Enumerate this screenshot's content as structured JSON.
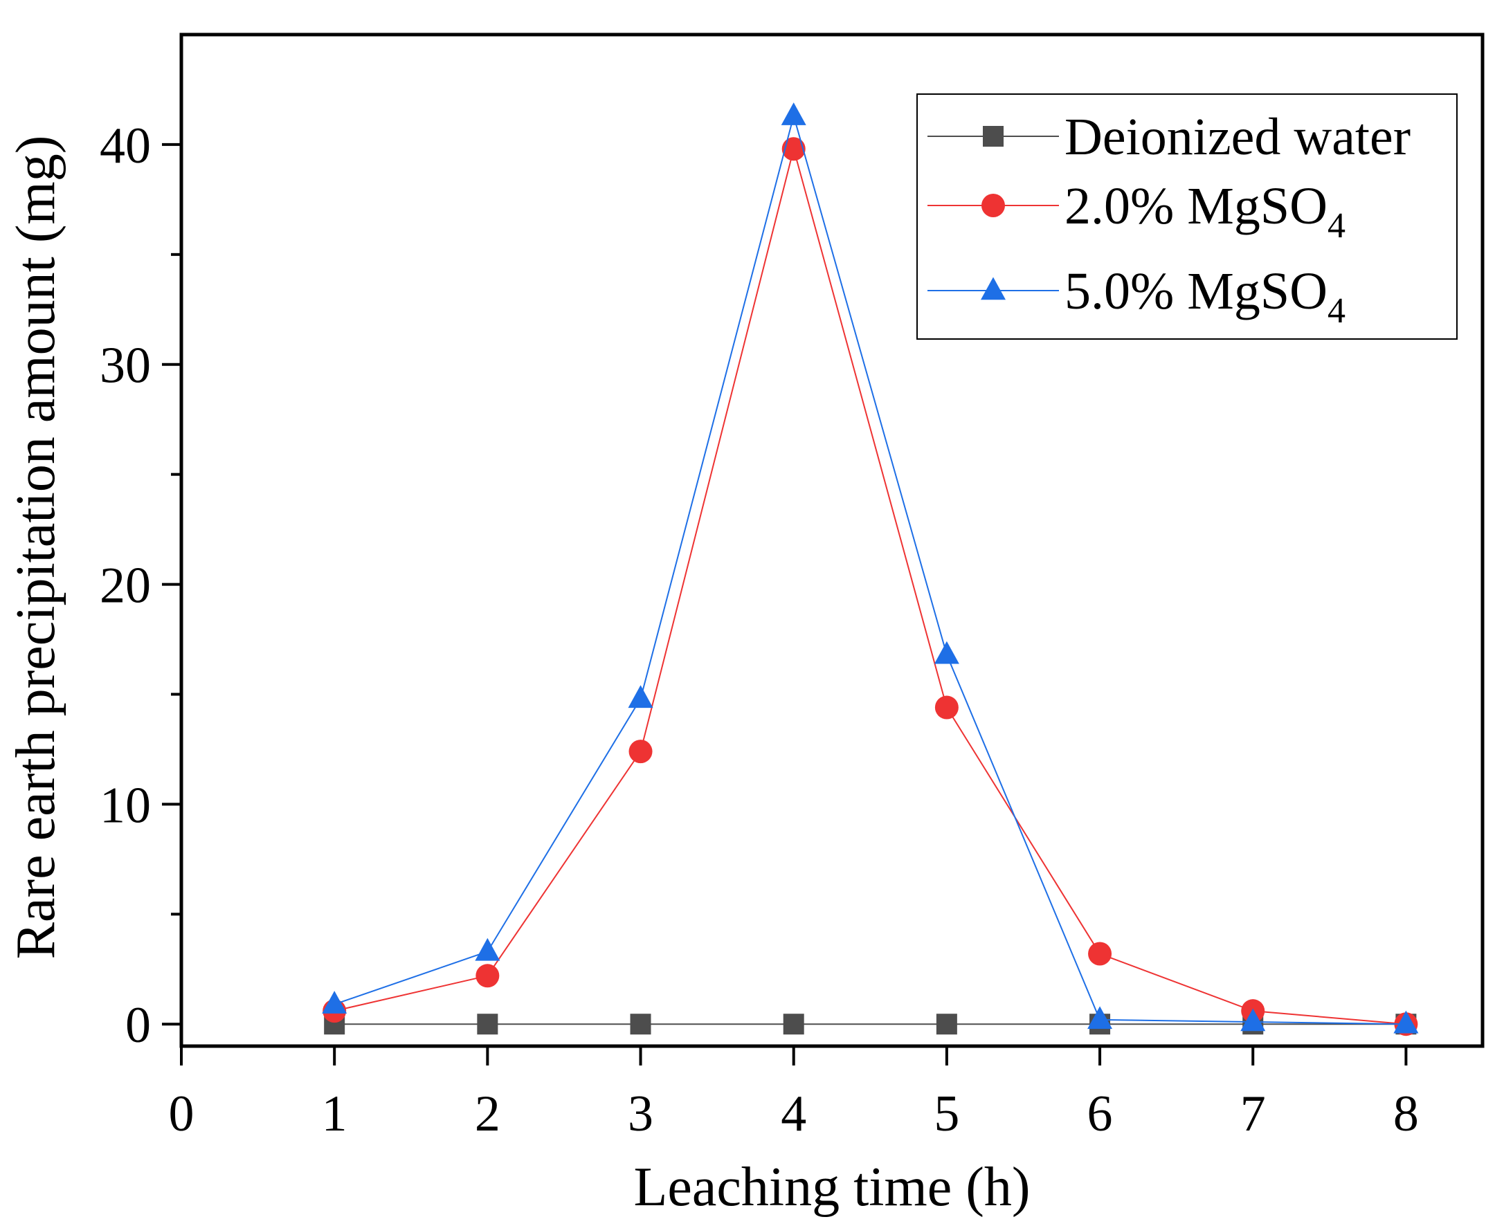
{
  "chart_data": {
    "type": "line",
    "title": "",
    "xlabel": "Leaching time  (h)",
    "ylabel": "Rare earth precipitation amount  (mg)",
    "xlim": [
      0,
      8.5
    ],
    "ylim": [
      -1,
      45
    ],
    "x_ticks": [
      0,
      1,
      2,
      3,
      4,
      5,
      6,
      7,
      8
    ],
    "x_tick_labels": [
      "0",
      "1",
      "2",
      "3",
      "4",
      "5",
      "6",
      "7",
      "8"
    ],
    "y_ticks": [
      0,
      10,
      20,
      30,
      40
    ],
    "y_tick_labels": [
      "0",
      "10",
      "20",
      "30",
      "40"
    ],
    "y_minor_ticks": [
      5,
      15,
      25,
      35
    ],
    "legend_position": "top-right",
    "x": [
      1,
      2,
      3,
      4,
      5,
      6,
      7,
      8
    ],
    "series": [
      {
        "name": "Deionized water",
        "name_main": "Deionized water",
        "name_sub": "",
        "color": "#4d4d4d",
        "marker": "square",
        "values": [
          0,
          0,
          0,
          0,
          0,
          0,
          0,
          0
        ]
      },
      {
        "name": "2.0% MgSO4",
        "name_main": "2.0% MgSO",
        "name_sub": "4",
        "color": "#ee3333",
        "marker": "circle",
        "values": [
          0.6,
          2.2,
          12.4,
          39.8,
          14.4,
          3.2,
          0.6,
          0
        ]
      },
      {
        "name": "5.0% MgSO4",
        "name_main": "5.0% MgSO",
        "name_sub": "4",
        "color": "#1e6fe6",
        "marker": "triangle",
        "values": [
          0.9,
          3.3,
          14.8,
          41.3,
          16.8,
          0.2,
          0.1,
          0
        ]
      }
    ]
  }
}
